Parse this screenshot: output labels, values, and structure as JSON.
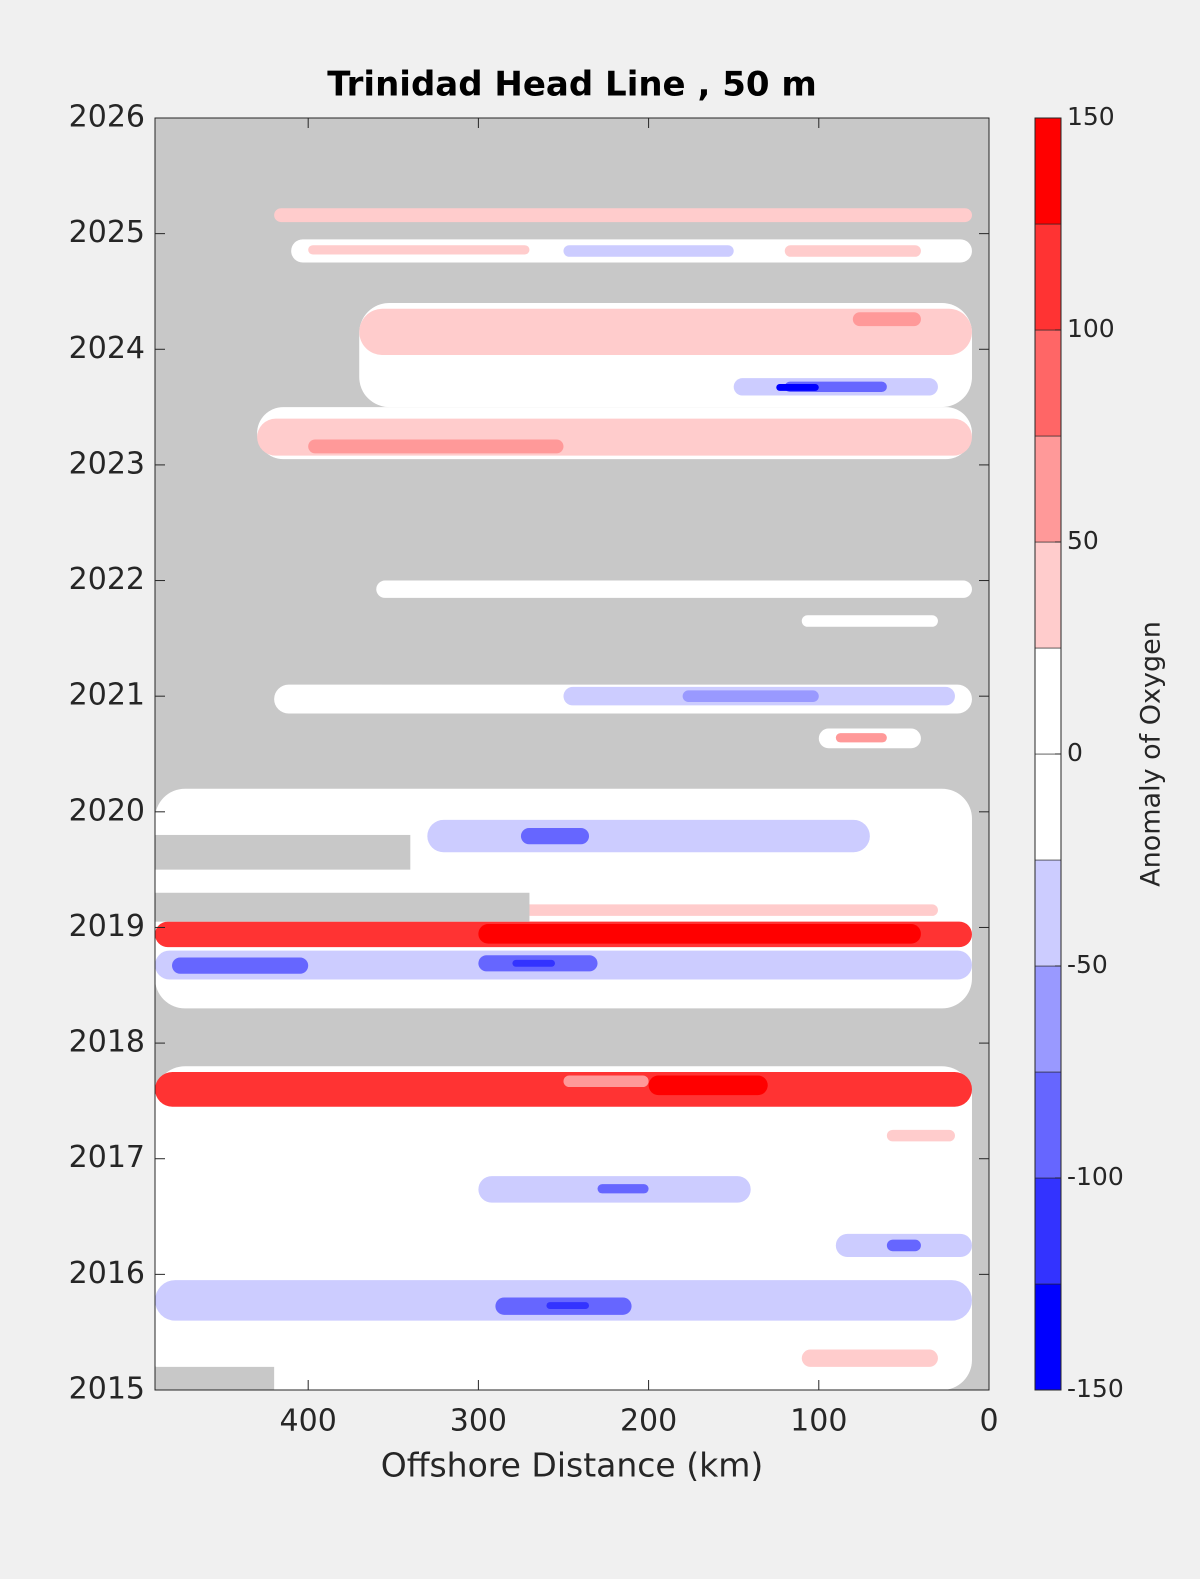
{
  "chart_data": {
    "type": "contourf",
    "title": "Trinidad Head Line , 50 m",
    "x_label": "Offshore Distance (km)",
    "xlim": [
      490,
      0
    ],
    "xticks": [
      400,
      300,
      200,
      100,
      0
    ],
    "ylim": [
      2015,
      2026
    ],
    "yticks": [
      2015,
      2016,
      2017,
      2018,
      2019,
      2020,
      2021,
      2022,
      2023,
      2024,
      2025,
      2026
    ],
    "no_data_color": "#c8c8c8",
    "colorbar": {
      "label": "Anomaly of Oxygen",
      "levels": [
        -150,
        -125,
        -100,
        -75,
        -50,
        -25,
        0,
        25,
        50,
        75,
        100,
        125,
        150
      ],
      "colors": [
        "#0000ff",
        "#3333ff",
        "#6666ff",
        "#9999ff",
        "#ccccff",
        "#ffffff",
        "#ffffff",
        "#ffcccc",
        "#ff9999",
        "#ff6666",
        "#ff3333",
        "#ff0000"
      ],
      "ticks": [
        -150,
        -100,
        -50,
        0,
        50,
        100,
        150
      ]
    },
    "patches": [
      {
        "x": [
          420,
          10
        ],
        "y": [
          2025.1,
          2025.22
        ],
        "value": 35
      },
      {
        "x": [
          410,
          10
        ],
        "y": [
          2024.75,
          2024.95
        ],
        "value": 0
      },
      {
        "x": [
          430,
          10
        ],
        "y": [
          2023.05,
          2023.5
        ],
        "value": 0
      },
      {
        "x": [
          370,
          10
        ],
        "y": [
          2023.5,
          2024.4
        ],
        "value": 0
      },
      {
        "x": [
          360,
          10
        ],
        "y": [
          2021.85,
          2022.0
        ],
        "value": 0
      },
      {
        "x": [
          110,
          30
        ],
        "y": [
          2021.6,
          2021.7
        ],
        "value": 0
      },
      {
        "x": [
          420,
          10
        ],
        "y": [
          2020.85,
          2021.1
        ],
        "value": 0
      },
      {
        "x": [
          100,
          40
        ],
        "y": [
          2020.55,
          2020.72
        ],
        "value": 0
      },
      {
        "x": [
          490,
          10
        ],
        "y": [
          2015,
          2017.8
        ],
        "value": 0
      },
      {
        "x": [
          490,
          10
        ],
        "y": [
          2018.3,
          2020.2
        ],
        "value": 0
      },
      {
        "x": [
          400,
          270
        ],
        "y": [
          2024.82,
          2024.9
        ],
        "value": 35
      },
      {
        "x": [
          250,
          150
        ],
        "y": [
          2024.8,
          2024.9
        ],
        "value": -35
      },
      {
        "x": [
          120,
          40
        ],
        "y": [
          2024.8,
          2024.9
        ],
        "value": 35
      },
      {
        "x": [
          430,
          10
        ],
        "y": [
          2023.08,
          2023.4
        ],
        "value": 35
      },
      {
        "x": [
          400,
          250
        ],
        "y": [
          2023.1,
          2023.22
        ],
        "value": 60
      },
      {
        "x": [
          370,
          10
        ],
        "y": [
          2023.95,
          2024.35
        ],
        "value": 35
      },
      {
        "x": [
          80,
          40
        ],
        "y": [
          2024.2,
          2024.32
        ],
        "value": 60
      },
      {
        "x": [
          150,
          30
        ],
        "y": [
          2023.6,
          2023.75
        ],
        "value": -35
      },
      {
        "x": [
          120,
          60
        ],
        "y": [
          2023.63,
          2023.72
        ],
        "value": -80
      },
      {
        "x": [
          125,
          100
        ],
        "y": [
          2023.64,
          2023.7
        ],
        "value": -130
      },
      {
        "x": [
          250,
          20
        ],
        "y": [
          2020.92,
          2021.08
        ],
        "value": -35
      },
      {
        "x": [
          180,
          100
        ],
        "y": [
          2020.95,
          2021.05
        ],
        "value": -60
      },
      {
        "x": [
          90,
          60
        ],
        "y": [
          2020.6,
          2020.68
        ],
        "value": 60
      },
      {
        "x": [
          330,
          70
        ],
        "y": [
          2019.65,
          2019.93
        ],
        "value": -35
      },
      {
        "x": [
          275,
          235
        ],
        "y": [
          2019.72,
          2019.86
        ],
        "value": -80
      },
      {
        "x": [
          280,
          30
        ],
        "y": [
          2019.1,
          2019.2
        ],
        "value": 35
      },
      {
        "x": [
          490,
          10
        ],
        "y": [
          2018.83,
          2019.05
        ],
        "value": 110
      },
      {
        "x": [
          300,
          40
        ],
        "y": [
          2018.86,
          2019.03
        ],
        "value": 140
      },
      {
        "x": [
          490,
          10
        ],
        "y": [
          2018.55,
          2018.8
        ],
        "value": -35
      },
      {
        "x": [
          480,
          400
        ],
        "y": [
          2018.6,
          2018.74
        ],
        "value": -80
      },
      {
        "x": [
          300,
          230
        ],
        "y": [
          2018.62,
          2018.76
        ],
        "value": -80
      },
      {
        "x": [
          280,
          255
        ],
        "y": [
          2018.66,
          2018.72
        ],
        "value": -110
      },
      {
        "x": [
          490,
          10
        ],
        "y": [
          2017.45,
          2017.75
        ],
        "value": 110
      },
      {
        "x": [
          200,
          130
        ],
        "y": [
          2017.55,
          2017.72
        ],
        "value": 140
      },
      {
        "x": [
          250,
          200
        ],
        "y": [
          2017.62,
          2017.72
        ],
        "value": 60
      },
      {
        "x": [
          300,
          140
        ],
        "y": [
          2016.62,
          2016.85
        ],
        "value": -35
      },
      {
        "x": [
          230,
          200
        ],
        "y": [
          2016.7,
          2016.78
        ],
        "value": -80
      },
      {
        "x": [
          490,
          10
        ],
        "y": [
          2015.6,
          2015.95
        ],
        "value": -35
      },
      {
        "x": [
          290,
          210
        ],
        "y": [
          2015.65,
          2015.8
        ],
        "value": -80
      },
      {
        "x": [
          260,
          235
        ],
        "y": [
          2015.7,
          2015.76
        ],
        "value": -110
      },
      {
        "x": [
          90,
          10
        ],
        "y": [
          2016.15,
          2016.35
        ],
        "value": -35
      },
      {
        "x": [
          60,
          40
        ],
        "y": [
          2016.2,
          2016.3
        ],
        "value": -80
      },
      {
        "x": [
          110,
          30
        ],
        "y": [
          2015.2,
          2015.35
        ],
        "value": 35
      },
      {
        "x": [
          60,
          20
        ],
        "y": [
          2017.15,
          2017.25
        ],
        "value": 35
      }
    ],
    "no_data_patches": [
      {
        "x": [
          490,
          340
        ],
        "y": [
          2019.5,
          2019.8
        ]
      },
      {
        "x": [
          490,
          270
        ],
        "y": [
          2019.05,
          2019.3
        ]
      },
      {
        "x": [
          490,
          420
        ],
        "y": [
          2015,
          2015.2
        ]
      }
    ]
  }
}
